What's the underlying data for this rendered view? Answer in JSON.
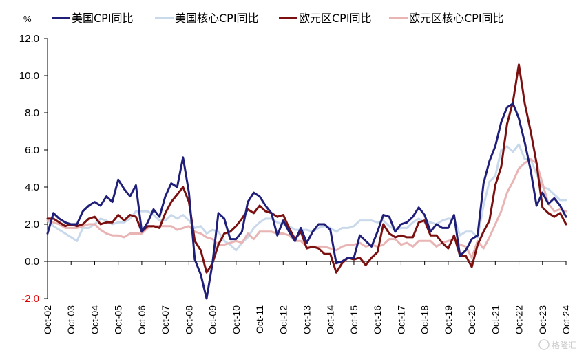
{
  "chart_data": {
    "type": "line",
    "unit_label": "%",
    "ylim": [
      -2.0,
      12.0
    ],
    "y_ticks": [
      "12.0",
      "10.0",
      "8.0",
      "6.0",
      "4.0",
      "2.0",
      "0.0",
      "-2.0"
    ],
    "x_tick_labels": [
      "Oct-02",
      "Oct-03",
      "Oct-04",
      "Oct-05",
      "Oct-06",
      "Oct-07",
      "Oct-08",
      "Oct-09",
      "Oct-10",
      "Oct-11",
      "Oct-12",
      "Oct-13",
      "Oct-14",
      "Oct-15",
      "Oct-16",
      "Oct-17",
      "Oct-18",
      "Oct-19",
      "Oct-20",
      "Oct-21",
      "Oct-22",
      "Oct-23",
      "Oct-24"
    ],
    "x_range": [
      2002.75,
      2024.75
    ],
    "grid": false,
    "legend_position": "top",
    "series": [
      {
        "name": "美国CPI同比",
        "color": "#1f1f7a",
        "x": [
          2002.75,
          2003.0,
          2003.25,
          2003.5,
          2003.75,
          2004.0,
          2004.25,
          2004.5,
          2004.75,
          2005.0,
          2005.25,
          2005.5,
          2005.75,
          2006.0,
          2006.25,
          2006.5,
          2006.75,
          2007.0,
          2007.25,
          2007.5,
          2007.75,
          2008.0,
          2008.25,
          2008.5,
          2008.75,
          2009.0,
          2009.25,
          2009.5,
          2009.75,
          2010.0,
          2010.25,
          2010.5,
          2010.75,
          2011.0,
          2011.25,
          2011.5,
          2011.75,
          2012.0,
          2012.25,
          2012.5,
          2012.75,
          2013.0,
          2013.25,
          2013.5,
          2013.75,
          2014.0,
          2014.25,
          2014.5,
          2014.75,
          2015.0,
          2015.25,
          2015.5,
          2015.75,
          2016.0,
          2016.25,
          2016.5,
          2016.75,
          2017.0,
          2017.25,
          2017.5,
          2017.75,
          2018.0,
          2018.25,
          2018.5,
          2018.75,
          2019.0,
          2019.25,
          2019.5,
          2019.75,
          2020.0,
          2020.25,
          2020.5,
          2020.75,
          2021.0,
          2021.25,
          2021.5,
          2021.75,
          2022.0,
          2022.25,
          2022.5,
          2022.75,
          2023.0,
          2023.25,
          2023.5,
          2023.75,
          2024.0,
          2024.25,
          2024.5,
          2024.75
        ],
        "y": [
          1.5,
          2.6,
          2.3,
          2.1,
          2.0,
          2.0,
          2.7,
          3.0,
          3.2,
          3.0,
          3.5,
          3.2,
          4.4,
          3.9,
          3.5,
          4.1,
          1.6,
          2.1,
          2.8,
          2.4,
          3.5,
          4.2,
          4.0,
          5.6,
          3.7,
          0.1,
          -0.7,
          -2.0,
          -0.1,
          2.6,
          2.3,
          1.2,
          1.2,
          1.6,
          3.2,
          3.7,
          3.5,
          3.0,
          2.6,
          1.4,
          2.2,
          1.6,
          1.1,
          1.8,
          1.0,
          1.6,
          2.0,
          2.0,
          1.7,
          -0.1,
          0.0,
          0.2,
          0.2,
          1.4,
          1.1,
          0.8,
          1.6,
          2.5,
          2.4,
          1.6,
          2.0,
          2.1,
          2.4,
          2.9,
          2.5,
          1.6,
          2.0,
          1.8,
          1.8,
          2.5,
          0.3,
          0.6,
          1.2,
          1.4,
          4.2,
          5.4,
          6.2,
          7.5,
          8.3,
          8.5,
          7.7,
          6.4,
          4.9,
          3.0,
          3.7,
          3.1,
          3.4,
          3.0,
          2.4
        ]
      },
      {
        "name": "美国核心CPI同比",
        "color": "#c9d9ec",
        "x": [
          2002.75,
          2003.0,
          2003.25,
          2003.5,
          2003.75,
          2004.0,
          2004.25,
          2004.5,
          2004.75,
          2005.0,
          2005.25,
          2005.5,
          2005.75,
          2006.0,
          2006.25,
          2006.5,
          2006.75,
          2007.0,
          2007.25,
          2007.5,
          2007.75,
          2008.0,
          2008.25,
          2008.5,
          2008.75,
          2009.0,
          2009.25,
          2009.5,
          2009.75,
          2010.0,
          2010.25,
          2010.5,
          2010.75,
          2011.0,
          2011.25,
          2011.5,
          2011.75,
          2012.0,
          2012.25,
          2012.5,
          2012.75,
          2013.0,
          2013.25,
          2013.5,
          2013.75,
          2014.0,
          2014.25,
          2014.5,
          2014.75,
          2015.0,
          2015.25,
          2015.5,
          2015.75,
          2016.0,
          2016.25,
          2016.5,
          2016.75,
          2017.0,
          2017.25,
          2017.5,
          2017.75,
          2018.0,
          2018.25,
          2018.5,
          2018.75,
          2019.0,
          2019.25,
          2019.5,
          2019.75,
          2020.0,
          2020.25,
          2020.5,
          2020.75,
          2021.0,
          2021.25,
          2021.5,
          2021.75,
          2022.0,
          2022.25,
          2022.5,
          2022.75,
          2023.0,
          2023.25,
          2023.5,
          2023.75,
          2024.0,
          2024.25,
          2024.5,
          2024.75
        ],
        "y": [
          2.2,
          1.9,
          1.7,
          1.5,
          1.3,
          1.1,
          1.8,
          1.8,
          2.0,
          2.3,
          2.2,
          2.0,
          2.1,
          2.1,
          2.3,
          2.7,
          2.7,
          2.7,
          2.5,
          2.2,
          2.2,
          2.5,
          2.3,
          2.5,
          2.2,
          1.8,
          1.9,
          1.5,
          1.7,
          1.6,
          1.1,
          0.9,
          0.6,
          1.0,
          1.3,
          1.8,
          2.1,
          2.3,
          2.3,
          2.1,
          2.0,
          1.9,
          1.7,
          1.7,
          1.7,
          1.6,
          1.8,
          1.9,
          1.8,
          1.6,
          1.8,
          1.8,
          1.9,
          2.2,
          2.2,
          2.2,
          2.1,
          2.2,
          1.9,
          1.7,
          1.8,
          1.8,
          2.1,
          2.3,
          2.1,
          2.1,
          2.0,
          2.2,
          2.3,
          2.3,
          1.4,
          1.6,
          1.6,
          1.3,
          3.0,
          4.3,
          4.6,
          6.0,
          6.2,
          5.9,
          6.3,
          5.5,
          5.5,
          4.7,
          4.0,
          3.9,
          3.6,
          3.3,
          3.3
        ]
      },
      {
        "name": "欧元区CPI同比",
        "color": "#7b1010",
        "x": [
          2002.75,
          2003.0,
          2003.25,
          2003.5,
          2003.75,
          2004.0,
          2004.25,
          2004.5,
          2004.75,
          2005.0,
          2005.25,
          2005.5,
          2005.75,
          2006.0,
          2006.25,
          2006.5,
          2006.75,
          2007.0,
          2007.25,
          2007.5,
          2007.75,
          2008.0,
          2008.25,
          2008.5,
          2008.75,
          2009.0,
          2009.25,
          2009.5,
          2009.75,
          2010.0,
          2010.25,
          2010.5,
          2010.75,
          2011.0,
          2011.25,
          2011.5,
          2011.75,
          2012.0,
          2012.25,
          2012.5,
          2012.75,
          2013.0,
          2013.25,
          2013.5,
          2013.75,
          2014.0,
          2014.25,
          2014.5,
          2014.75,
          2015.0,
          2015.25,
          2015.5,
          2015.75,
          2016.0,
          2016.25,
          2016.5,
          2016.75,
          2017.0,
          2017.25,
          2017.5,
          2017.75,
          2018.0,
          2018.25,
          2018.5,
          2018.75,
          2019.0,
          2019.25,
          2019.5,
          2019.75,
          2020.0,
          2020.25,
          2020.5,
          2020.75,
          2021.0,
          2021.25,
          2021.5,
          2021.75,
          2022.0,
          2022.25,
          2022.5,
          2022.75,
          2023.0,
          2023.25,
          2023.5,
          2023.75,
          2024.0,
          2024.25,
          2024.5,
          2024.75
        ],
        "y": [
          2.3,
          2.3,
          2.1,
          1.9,
          2.0,
          1.9,
          2.0,
          2.3,
          2.4,
          2.0,
          2.1,
          2.1,
          2.5,
          2.2,
          2.5,
          2.4,
          1.6,
          1.9,
          1.9,
          1.8,
          2.6,
          3.2,
          3.6,
          4.0,
          3.2,
          1.1,
          0.6,
          -0.6,
          -0.1,
          0.9,
          1.5,
          1.6,
          1.9,
          2.3,
          2.8,
          2.6,
          3.0,
          2.7,
          2.6,
          2.4,
          2.5,
          1.8,
          1.2,
          1.6,
          0.7,
          0.8,
          0.7,
          0.4,
          0.4,
          -0.6,
          -0.1,
          0.2,
          0.1,
          0.2,
          -0.2,
          0.2,
          0.5,
          2.0,
          1.5,
          1.3,
          1.4,
          1.3,
          1.3,
          2.1,
          2.2,
          1.4,
          1.4,
          1.0,
          0.7,
          1.4,
          0.3,
          0.3,
          -0.3,
          0.9,
          1.6,
          2.2,
          4.1,
          5.1,
          7.4,
          8.6,
          10.6,
          8.5,
          7.0,
          5.3,
          2.9,
          2.6,
          2.4,
          2.6,
          2.0
        ]
      },
      {
        "name": "欧元区核心CPI同比",
        "color": "#e8b4b4",
        "x": [
          2002.75,
          2003.0,
          2003.25,
          2003.5,
          2003.75,
          2004.0,
          2004.25,
          2004.5,
          2004.75,
          2005.0,
          2005.25,
          2005.5,
          2005.75,
          2006.0,
          2006.25,
          2006.5,
          2006.75,
          2007.0,
          2007.25,
          2007.5,
          2007.75,
          2008.0,
          2008.25,
          2008.5,
          2008.75,
          2009.0,
          2009.25,
          2009.5,
          2009.75,
          2010.0,
          2010.25,
          2010.5,
          2010.75,
          2011.0,
          2011.25,
          2011.5,
          2011.75,
          2012.0,
          2012.25,
          2012.5,
          2012.75,
          2013.0,
          2013.25,
          2013.5,
          2013.75,
          2014.0,
          2014.25,
          2014.5,
          2014.75,
          2015.0,
          2015.25,
          2015.5,
          2015.75,
          2016.0,
          2016.25,
          2016.5,
          2016.75,
          2017.0,
          2017.25,
          2017.5,
          2017.75,
          2018.0,
          2018.25,
          2018.5,
          2018.75,
          2019.0,
          2019.25,
          2019.5,
          2019.75,
          2020.0,
          2020.25,
          2020.5,
          2020.75,
          2021.0,
          2021.25,
          2021.5,
          2021.75,
          2022.0,
          2022.25,
          2022.5,
          2022.75,
          2023.0,
          2023.25,
          2023.5,
          2023.75,
          2024.0,
          2024.25,
          2024.5,
          2024.75
        ],
        "y": [
          2.2,
          2.1,
          2.0,
          1.8,
          1.8,
          1.8,
          1.9,
          2.0,
          2.0,
          1.7,
          1.5,
          1.4,
          1.4,
          1.3,
          1.5,
          1.5,
          1.5,
          1.8,
          1.9,
          1.9,
          1.9,
          1.9,
          1.7,
          1.8,
          1.9,
          1.6,
          1.5,
          1.3,
          1.2,
          0.9,
          0.9,
          1.0,
          1.1,
          1.0,
          1.5,
          1.2,
          1.6,
          1.6,
          1.6,
          1.5,
          1.5,
          1.4,
          1.1,
          1.1,
          0.8,
          0.8,
          0.8,
          0.8,
          0.7,
          0.6,
          0.8,
          0.9,
          0.9,
          1.0,
          0.8,
          0.9,
          0.8,
          0.9,
          1.2,
          1.2,
          0.9,
          1.0,
          0.8,
          1.1,
          1.1,
          1.1,
          0.8,
          1.0,
          1.1,
          1.2,
          0.9,
          0.8,
          0.2,
          1.1,
          0.7,
          1.3,
          2.0,
          2.7,
          3.7,
          4.3,
          5.0,
          5.3,
          5.5,
          5.3,
          4.2,
          3.1,
          2.7,
          2.8,
          2.7
        ]
      }
    ]
  },
  "watermark": "格隆汇"
}
